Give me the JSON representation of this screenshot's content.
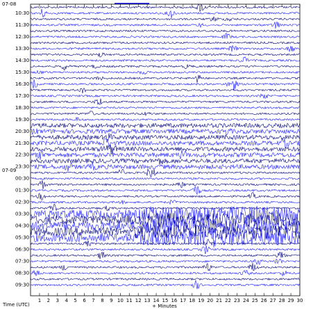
{
  "date_labels": [
    "07-08",
    "07-09"
  ],
  "time_labels": [
    "10:30",
    "11:30",
    "12:30",
    "13:30",
    "14:30",
    "15:30",
    "16:30",
    "17:30",
    "18:30",
    "19:30",
    "20:30",
    "21:30",
    "22:30",
    "23:30",
    "00:30",
    "01:30",
    "02:30",
    "03:30",
    "04:30",
    "05:30",
    "06:30",
    "07:30",
    "08:30",
    "09:30"
  ],
  "x_axis": {
    "ticks": [
      1,
      2,
      3,
      4,
      5,
      6,
      7,
      8,
      9,
      10,
      11,
      12,
      13,
      14,
      15,
      16,
      17,
      18,
      19,
      20,
      21,
      22,
      23,
      24,
      25,
      26,
      27,
      28,
      29,
      30
    ],
    "label": "+ Minutes"
  },
  "y_axis_label": "Time (UTC)"
}
